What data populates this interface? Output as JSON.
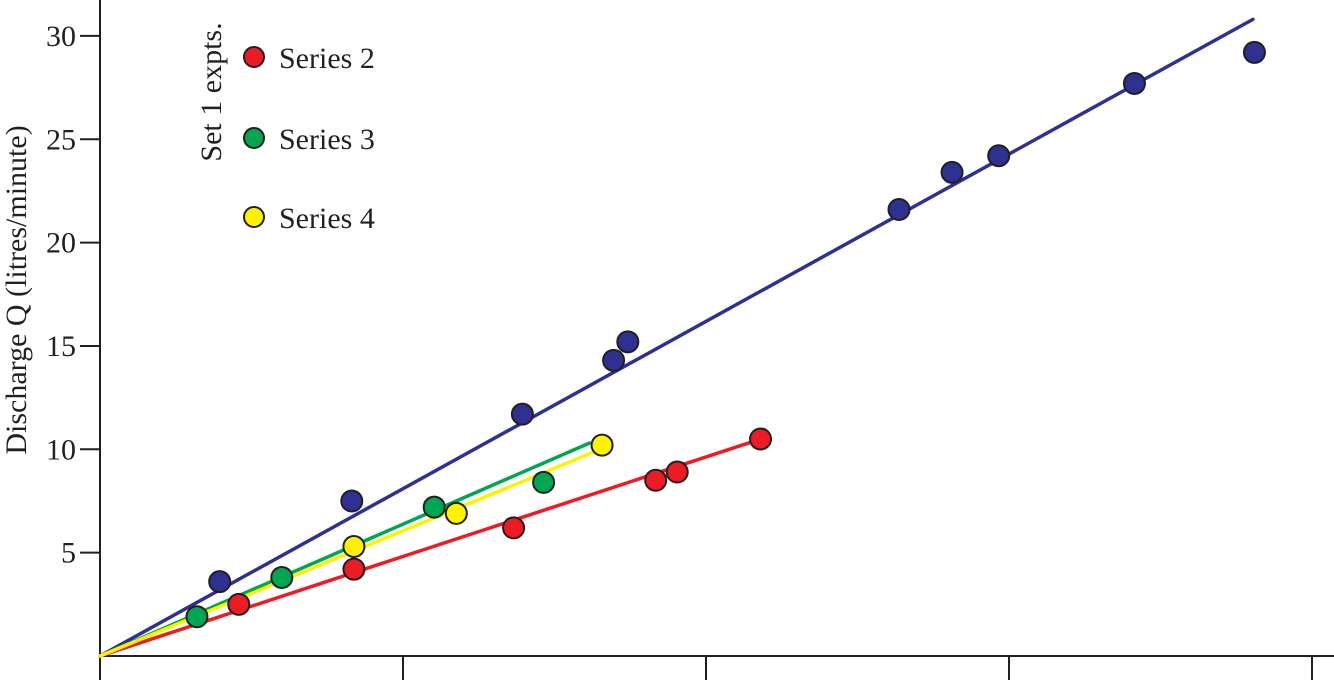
{
  "chart_data": {
    "type": "scatter",
    "title": "",
    "xlabel": "",
    "ylabel": "Discharge Q (litres/minute)",
    "ylim": [
      0,
      31
    ],
    "yticks": [
      5,
      10,
      15,
      20,
      25,
      30
    ],
    "xticks_count": 5,
    "grid": false,
    "legend_title": "Set 1 expts.",
    "legend_position": "top-left",
    "series": [
      {
        "key": "series1",
        "color": "#2e3192",
        "x": [
          0.395,
          0.831,
          1.394,
          1.695,
          1.742,
          2.637,
          2.812,
          2.966,
          3.414,
          3.81
        ],
        "y": [
          3.6,
          7.5,
          11.7,
          14.3,
          15.2,
          21.6,
          23.4,
          24.2,
          27.7,
          29.2
        ],
        "fit": [
          [
            0,
            0
          ],
          [
            3.805,
            30.8
          ]
        ]
      },
      {
        "key": "series2",
        "name": "Series 2",
        "color": "#ed1c24",
        "x": [
          0.458,
          0.838,
          1.365,
          1.834,
          1.905,
          2.18
        ],
        "y": [
          2.5,
          4.2,
          6.2,
          8.5,
          8.9,
          10.5
        ],
        "fit": [
          [
            0,
            0
          ],
          [
            2.16,
            10.4
          ]
        ]
      },
      {
        "key": "series3",
        "name": "Series 3",
        "color": "#00a651",
        "x": [
          0.32,
          0.6,
          1.103,
          1.464
        ],
        "y": [
          1.9,
          3.8,
          7.2,
          8.4
        ],
        "fit": [
          [
            0,
            0
          ],
          [
            1.615,
            10.3
          ]
        ]
      },
      {
        "key": "series4",
        "name": "Series 4",
        "color": "#fff200",
        "x": [
          0.838,
          1.176,
          1.657
        ],
        "y": [
          5.3,
          6.9,
          10.2
        ],
        "fit": [
          [
            0,
            0
          ],
          [
            1.635,
            9.9
          ]
        ]
      }
    ]
  }
}
